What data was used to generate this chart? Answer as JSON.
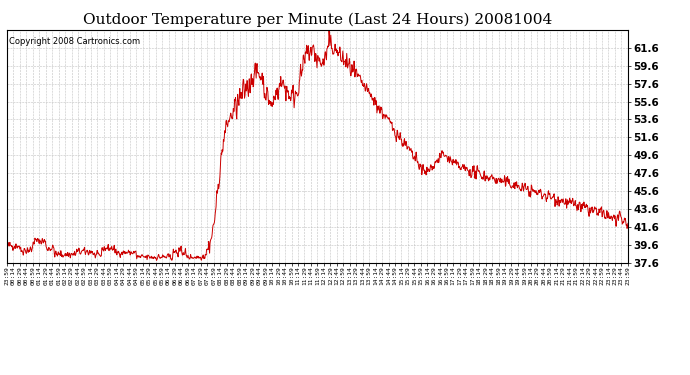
{
  "title": "Outdoor Temperature per Minute (Last 24 Hours) 20081004",
  "copyright_text": "Copyright 2008 Cartronics.com",
  "line_color": "#cc0000",
  "background_color": "#ffffff",
  "grid_color": "#bbbbbb",
  "ylim": [
    37.6,
    63.6
  ],
  "yticks": [
    37.6,
    39.6,
    41.6,
    43.6,
    45.6,
    47.6,
    49.6,
    51.6,
    53.6,
    55.6,
    57.6,
    59.6,
    61.6
  ],
  "x_tick_interval": 15,
  "title_fontsize": 11,
  "copyright_fontsize": 6,
  "ytick_fontsize": 7.5,
  "xtick_fontsize": 4.5
}
